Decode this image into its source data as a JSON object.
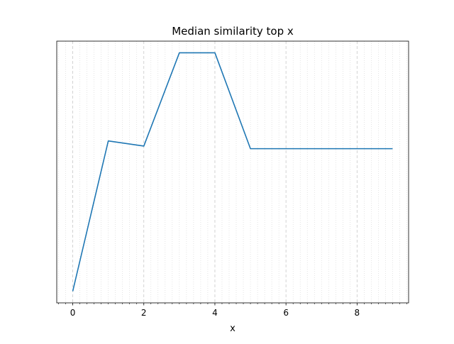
{
  "chart_data": {
    "type": "line",
    "title": "Median similarity top x",
    "xlabel": "x",
    "ylabel": "",
    "x": [
      0,
      1,
      2,
      3,
      4,
      5,
      6,
      7,
      8,
      9
    ],
    "series": [
      {
        "values": [
          0.05,
          0.63,
          0.61,
          0.97,
          0.97,
          0.6,
          0.6,
          0.6,
          0.6,
          0.6
        ],
        "color": "#1f77b4"
      }
    ],
    "xlim": [
      -0.45,
      9.45
    ],
    "ylim": [
      0.005,
      1.015
    ],
    "xticks": [
      0,
      2,
      4,
      6,
      8
    ],
    "xtick_labels": [
      "0",
      "2",
      "4",
      "6",
      "8"
    ],
    "x_minor_step": 0.2,
    "y_ticks_visible": false,
    "grid": {
      "major": "dashed light gray vertical lines",
      "minor": "dotted light gray vertical lines"
    }
  }
}
